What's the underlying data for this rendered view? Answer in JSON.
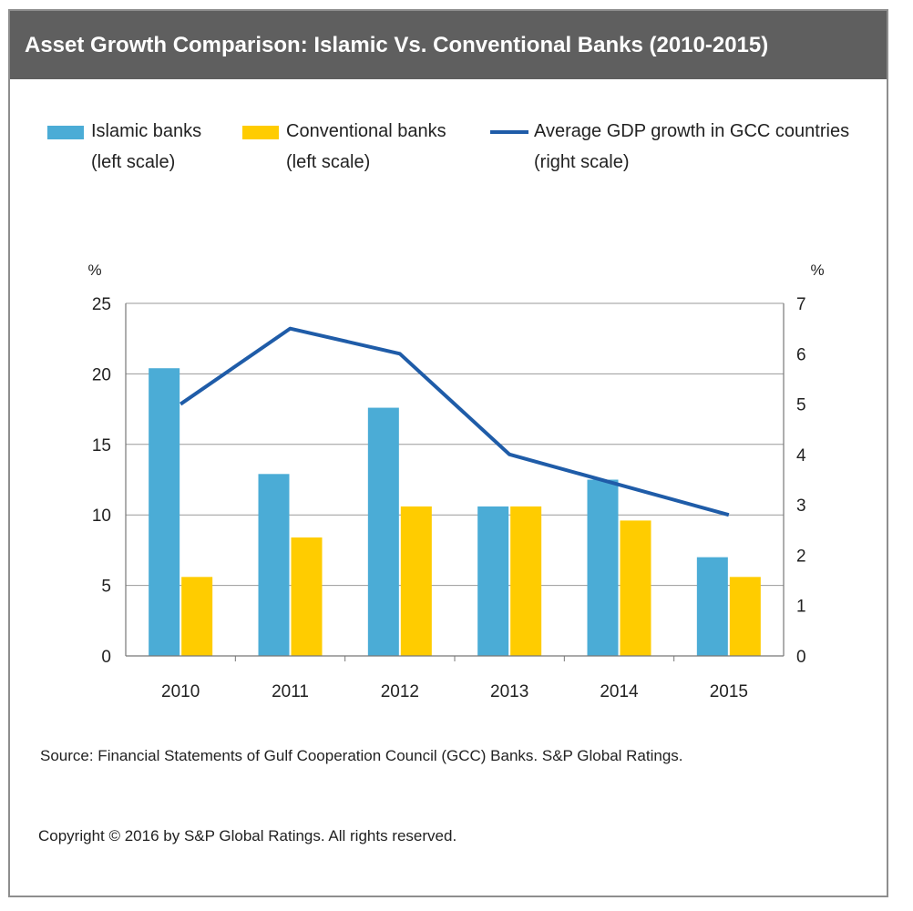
{
  "title": "Asset Growth Comparison: Islamic Vs. Conventional Banks (2010-2015)",
  "legend": [
    {
      "label_line1": "Islamic banks",
      "label_line2": "(left scale)",
      "kind": "bar",
      "color": "#4bacd6"
    },
    {
      "label_line1": "Conventional banks",
      "label_line2": "(left scale)",
      "kind": "bar",
      "color": "#ffcc00"
    },
    {
      "label_line1": "Average GDP growth in GCC countries",
      "label_line2": "(right scale)",
      "kind": "line",
      "color": "#1f5ca8"
    }
  ],
  "source": "Source: Financial Statements of Gulf Cooperation Council (GCC) Banks. S&P Global Ratings.",
  "copyright": "Copyright © 2016 by S&P Global Ratings. All rights reserved.",
  "chart_data": {
    "type": "bar",
    "title": "Asset Growth Comparison: Islamic Vs. Conventional Banks (2010-2015)",
    "categories": [
      "2010",
      "2011",
      "2012",
      "2013",
      "2014",
      "2015"
    ],
    "series": [
      {
        "name": "Islamic banks (left scale)",
        "type": "bar",
        "axis": "left",
        "color": "#4bacd6",
        "values": [
          20.4,
          12.9,
          17.6,
          10.6,
          12.5,
          7.0
        ]
      },
      {
        "name": "Conventional banks (left scale)",
        "type": "bar",
        "axis": "left",
        "color": "#ffcc00",
        "values": [
          5.6,
          8.4,
          10.6,
          10.6,
          9.6,
          5.6
        ]
      },
      {
        "name": "Average GDP growth in GCC countries (right scale)",
        "type": "line",
        "axis": "right",
        "color": "#1f5ca8",
        "values": [
          5.0,
          6.5,
          6.0,
          4.0,
          3.4,
          2.8
        ]
      }
    ],
    "left_axis": {
      "label": "%",
      "range": [
        0,
        25
      ],
      "ticks": [
        0,
        5,
        10,
        15,
        20,
        25
      ]
    },
    "right_axis": {
      "label": "%",
      "range": [
        0,
        7
      ],
      "ticks": [
        0,
        1,
        2,
        3,
        4,
        5,
        6,
        7
      ]
    },
    "grid": true
  }
}
